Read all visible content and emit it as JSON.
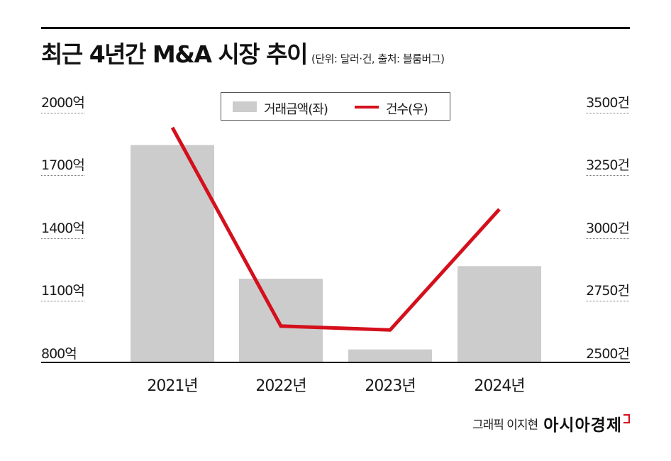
{
  "header": {
    "title": "최근 4년간 M&A 시장 추이",
    "subtitle": "(단위: 달러·건, 출처: 블룸버그)"
  },
  "legend": {
    "bar_label": "거래금액(좌)",
    "line_label": "건수(우)"
  },
  "left_axis": {
    "ticks": [
      "2000억",
      "1700억",
      "1400억",
      "1100억",
      "800억"
    ]
  },
  "right_axis": {
    "ticks": [
      "3500건",
      "3250건",
      "3000건",
      "2750건",
      "2500건"
    ]
  },
  "footer": {
    "credit": "그래픽 이지현",
    "brand": "아시아경제"
  },
  "colors": {
    "bar": "#cccccc",
    "line": "#d4101c",
    "axis": "#111111"
  },
  "chart_data": {
    "type": "bar",
    "categories": [
      "2021년",
      "2022년",
      "2023년",
      "2024년"
    ],
    "series": [
      {
        "name": "거래금액(좌)",
        "type": "bar",
        "axis": "left",
        "values": [
          1805,
          1187,
          860,
          1245
        ]
      },
      {
        "name": "건수(우)",
        "type": "line",
        "axis": "right",
        "values": [
          3405,
          2640,
          2625,
          3090
        ]
      }
    ],
    "ylim_left": [
      800,
      2000
    ],
    "ylim_right": [
      2500,
      3500
    ],
    "title": "최근 4년간 M&A 시장 추이",
    "xlabel": "",
    "ylabel": "",
    "grid": false,
    "legend_position": "top-center"
  }
}
